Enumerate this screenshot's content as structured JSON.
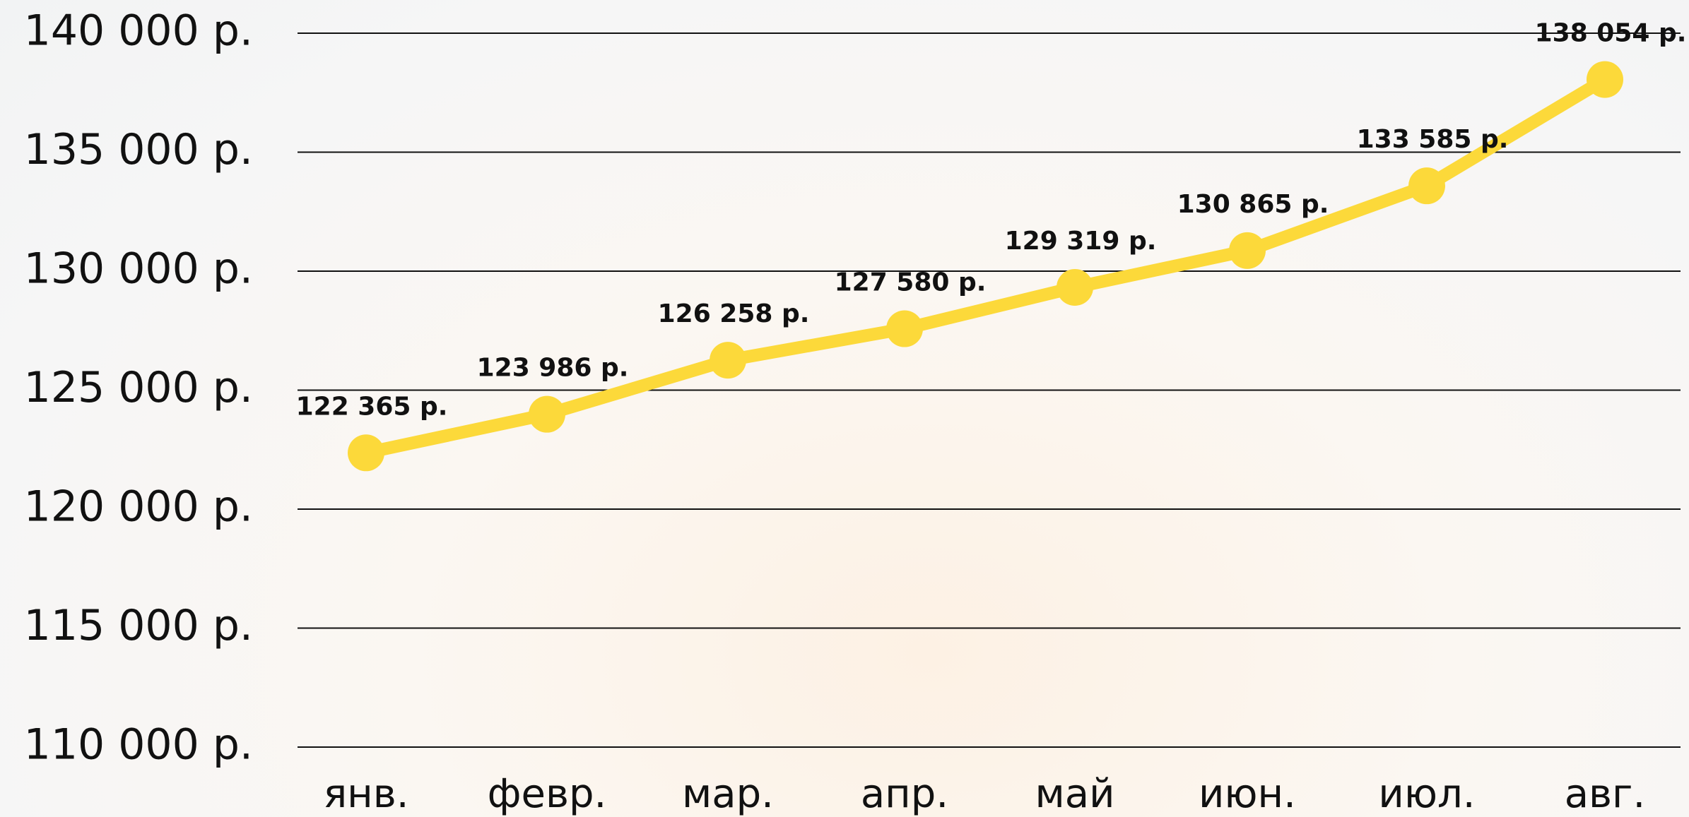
{
  "chart_data": {
    "type": "line",
    "categories": [
      "янв.",
      "февр.",
      "мар.",
      "апр.",
      "май",
      "июн.",
      "июл.",
      "авг."
    ],
    "values": [
      122365,
      123986,
      126258,
      127580,
      129319,
      130865,
      133585,
      138054
    ],
    "value_labels": [
      "122 365 р.",
      "123 986 р.",
      "126 258 р.",
      "127 580 р.",
      "129 319 р.",
      "130 865 р.",
      "133 585 р.",
      "138 054 р."
    ],
    "color": "#fcd93a",
    "ylim": [
      110000,
      140000
    ],
    "yticks": [
      {
        "value": 110000,
        "label": "110 000 р."
      },
      {
        "value": 115000,
        "label": "115 000 р."
      },
      {
        "value": 120000,
        "label": "120 000 р."
      },
      {
        "value": 125000,
        "label": "125 000 р."
      },
      {
        "value": 130000,
        "label": "130 000 р."
      },
      {
        "value": 135000,
        "label": "135 000 р."
      },
      {
        "value": 140000,
        "label": "140 000 р."
      }
    ],
    "grid": true
  }
}
